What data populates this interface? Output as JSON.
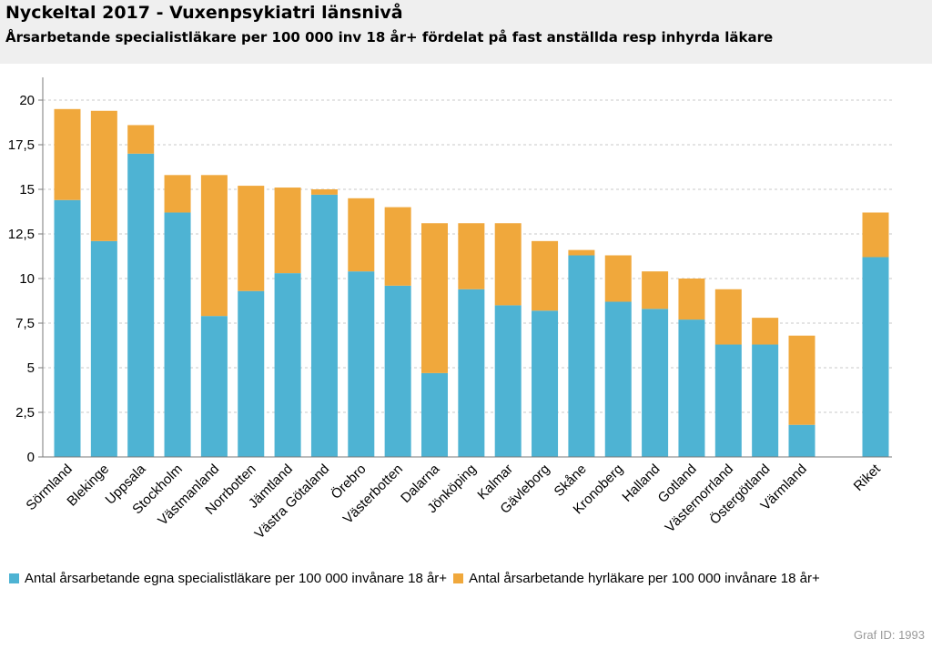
{
  "header": {
    "title": "Nyckeltal 2017 - Vuxenpsykiatri länsnivå",
    "subtitle": "Årsarbetande specialistläkare per 100 000 inv 18 år+ fördelat på fast anställda resp inhyrda läkare"
  },
  "colors": {
    "series1": "#4eb3d3",
    "series2": "#f0a83c",
    "grid": "#c8c8c8",
    "axis": "#7a7a7a"
  },
  "chart_data": {
    "type": "bar",
    "stacked": true,
    "title": "",
    "xlabel": "",
    "ylabel": "",
    "ylim": [
      0,
      20
    ],
    "yticks": [
      "0",
      "2,5",
      "5",
      "7,5",
      "10",
      "12,5",
      "15",
      "17,5",
      "20"
    ],
    "ytick_values": [
      0,
      2.5,
      5,
      7.5,
      10,
      12.5,
      15,
      17.5,
      20
    ],
    "grid": true,
    "legend_position": "bottom",
    "categories": [
      "Sörmland",
      "Blekinge",
      "Uppsala",
      "Stockholm",
      "Västmanland",
      "Norrbotten",
      "Jämtland",
      "Västra Götaland",
      "Örebro",
      "Västerbotten",
      "Dalarna",
      "Jönköping",
      "Kalmar",
      "Gävleborg",
      "Skåne",
      "Kronoberg",
      "Halland",
      "Gotland",
      "Västernorrland",
      "Östergötland",
      "Värmland",
      "Riket"
    ],
    "series": [
      {
        "name": "Antal årsarbetande egna specialistläkare per 100 000 invånare 18 år+",
        "values": [
          14.4,
          12.1,
          17.0,
          13.7,
          7.9,
          9.3,
          10.3,
          14.7,
          10.4,
          9.6,
          4.7,
          9.4,
          8.5,
          8.2,
          11.3,
          8.7,
          8.3,
          7.7,
          6.3,
          6.3,
          1.8,
          11.2
        ]
      },
      {
        "name": "Antal årsarbetande hyrläkare per 100 000 invånare 18 år+",
        "values": [
          5.1,
          7.3,
          1.6,
          2.1,
          7.9,
          5.9,
          4.8,
          0.3,
          4.1,
          4.4,
          8.4,
          3.7,
          4.6,
          3.9,
          0.3,
          2.6,
          2.1,
          2.3,
          3.1,
          1.5,
          5.0,
          2.5
        ]
      }
    ]
  },
  "legend": {
    "items": [
      "Antal årsarbetande egna specialistläkare per 100 000 invånare 18 år+",
      "Antal årsarbetande hyrläkare per 100 000 invånare 18 år+"
    ]
  },
  "footer": {
    "graf_id": "Graf ID: 1993"
  }
}
